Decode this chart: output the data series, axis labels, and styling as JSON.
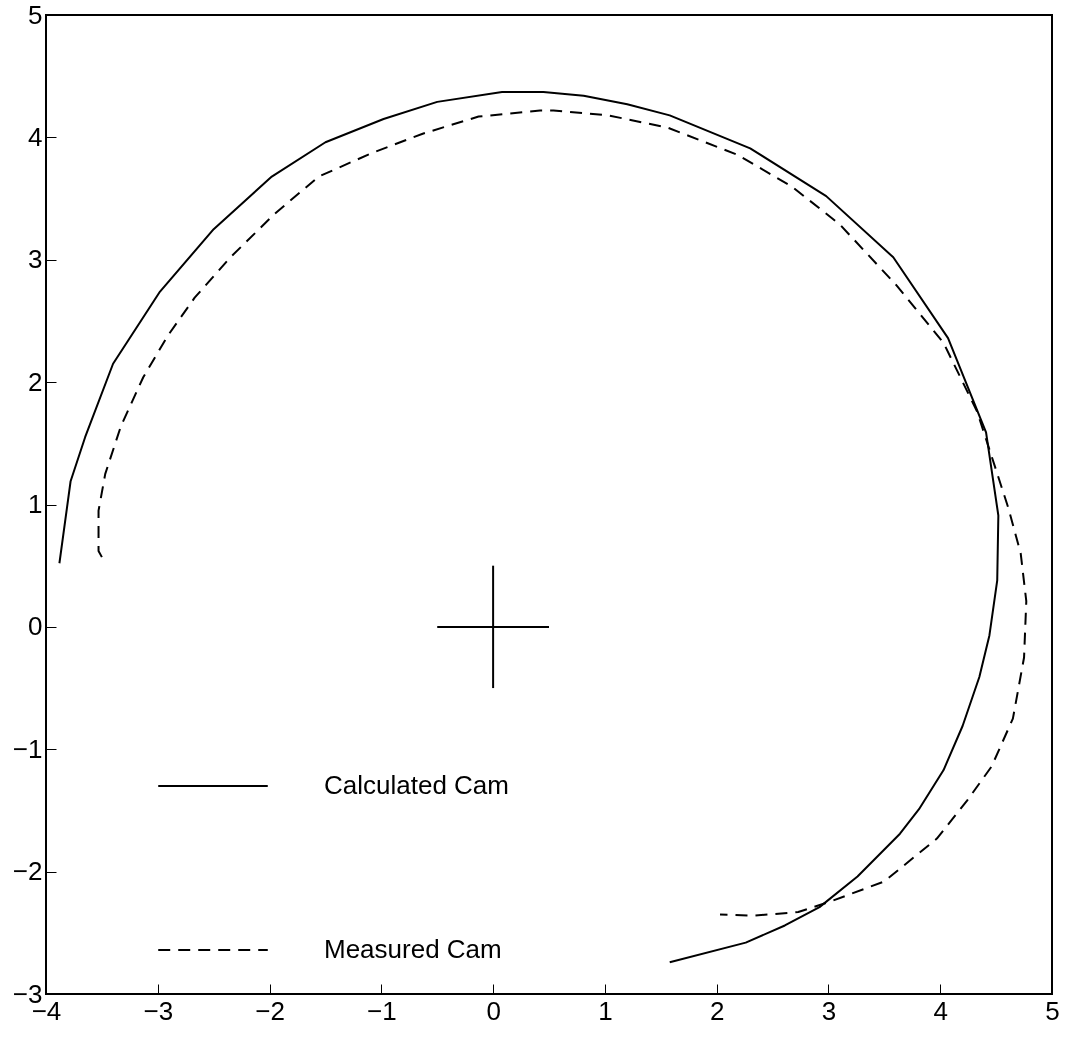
{
  "chart_data": {
    "type": "line",
    "xlim": [
      -4,
      5
    ],
    "xticks": [
      -4,
      -3,
      -2,
      -1,
      0,
      1,
      2,
      3,
      4,
      5
    ],
    "ylim": [
      -3,
      5
    ],
    "yticks": [
      -3,
      -2,
      -1,
      0,
      1,
      2,
      3,
      4,
      5
    ],
    "grid": false,
    "legend": "bottom left",
    "series": [
      {
        "name": "Calculated Cam",
        "color": "#000000",
        "line_style": "solid",
        "x": [
          -3.88,
          -3.78,
          -3.65,
          -3.4,
          -2.98,
          -2.5,
          -1.98,
          -1.5,
          -0.98,
          -0.5,
          0.08,
          0.45,
          0.81,
          1.2,
          1.58,
          2.3,
          2.98,
          3.58,
          4.07,
          4.41,
          4.52,
          4.51,
          4.44,
          4.35,
          4.2,
          4.03,
          3.81,
          3.64,
          3.26,
          2.92,
          2.61,
          2.26,
          1.58
        ],
        "values": [
          0.52,
          1.19,
          1.55,
          2.15,
          2.74,
          3.25,
          3.68,
          3.96,
          4.15,
          4.29,
          4.37,
          4.37,
          4.34,
          4.27,
          4.18,
          3.91,
          3.52,
          3.02,
          2.36,
          1.59,
          0.91,
          0.38,
          -0.07,
          -0.41,
          -0.81,
          -1.17,
          -1.49,
          -1.69,
          -2.04,
          -2.29,
          -2.44,
          -2.58,
          -2.74
        ]
      },
      {
        "name": "Measured Cam",
        "color": "#000000",
        "line_style": "dashed",
        "x": [
          -3.5,
          -3.53,
          -3.53,
          -3.47,
          -3.33,
          -3.13,
          -2.91,
          -2.67,
          -2.35,
          -1.96,
          -1.56,
          -1.09,
          -0.63,
          -0.13,
          0.42,
          0.54,
          1.03,
          1.56,
          2.18,
          2.67,
          3.1,
          3.6,
          4.03,
          4.33,
          4.61,
          4.72,
          4.77,
          4.75,
          4.65,
          4.46,
          4.24,
          3.97,
          3.5,
          3.03,
          2.73,
          2.33,
          2.03
        ],
        "values": [
          0.57,
          0.62,
          0.95,
          1.25,
          1.64,
          2.04,
          2.38,
          2.69,
          3.02,
          3.37,
          3.68,
          3.87,
          4.03,
          4.17,
          4.22,
          4.22,
          4.18,
          4.08,
          3.86,
          3.6,
          3.29,
          2.8,
          2.32,
          1.76,
          0.97,
          0.6,
          0.21,
          -0.25,
          -0.75,
          -1.14,
          -1.42,
          -1.73,
          -2.08,
          -2.24,
          -2.33,
          -2.36,
          -2.35
        ]
      },
      {
        "color": "#000000",
        "line_style": "solid",
        "x": [
          -0.5,
          0.5
        ],
        "values": [
          0,
          0
        ]
      },
      {
        "color": "#000000",
        "line_style": "solid",
        "x": [
          0,
          0
        ],
        "values": [
          0.5,
          -0.5
        ]
      }
    ]
  }
}
